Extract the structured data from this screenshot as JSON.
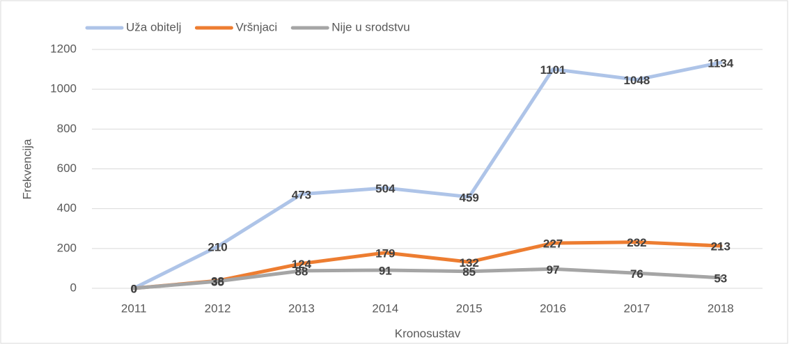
{
  "chart_data": {
    "type": "line",
    "x_label": "Kronosustav",
    "y_label": "Frekvencija",
    "categories": [
      "2011",
      "2012",
      "2013",
      "2014",
      "2015",
      "2016",
      "2017",
      "2018"
    ],
    "series": [
      {
        "name": "Uža obitelj",
        "color": "#aec4e8",
        "values": [
          0,
          210,
          473,
          504,
          459,
          1101,
          1048,
          1134
        ]
      },
      {
        "name": "Vršnjaci",
        "color": "#ed7d31",
        "values": [
          0,
          38,
          124,
          179,
          132,
          227,
          232,
          213
        ]
      },
      {
        "name": "Nije u srodstvu",
        "color": "#a5a5a5",
        "values": [
          0,
          35,
          88,
          91,
          85,
          97,
          76,
          53
        ]
      }
    ],
    "ylim": [
      0,
      1200
    ],
    "yticks": [
      0,
      200,
      400,
      600,
      800,
      1000,
      1200
    ],
    "grid": true,
    "legend": "top"
  }
}
